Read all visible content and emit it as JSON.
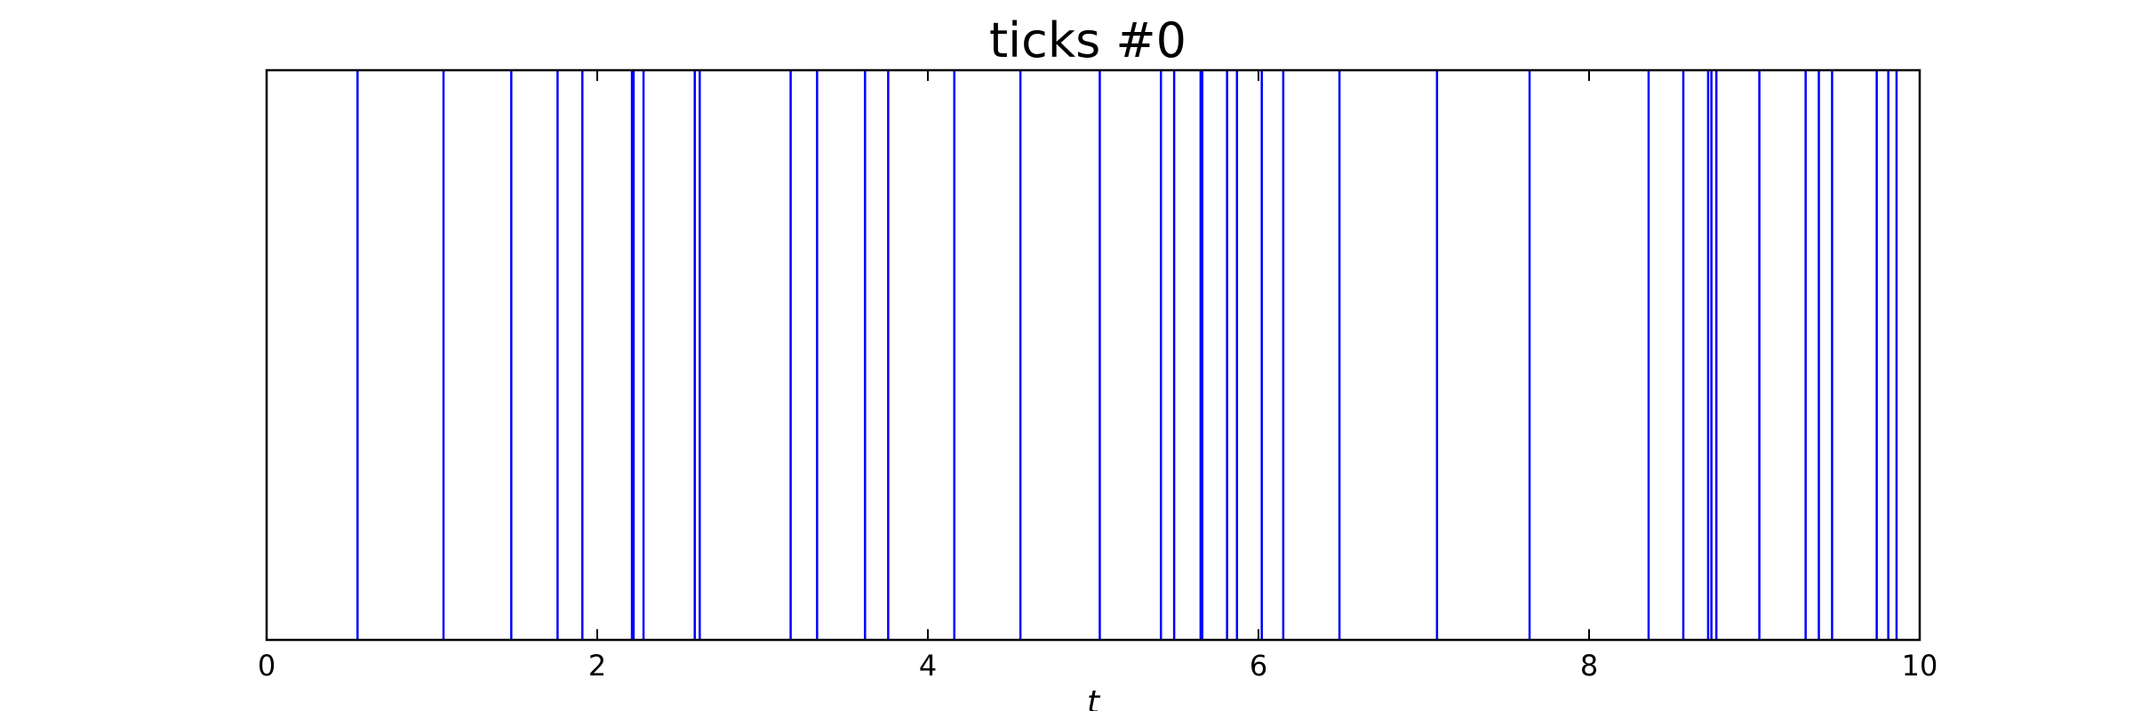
{
  "chart_data": {
    "type": "eventplot",
    "title": "ticks #0",
    "xlabel": "t",
    "ylabel": "",
    "xlim": [
      0,
      10
    ],
    "x_ticks": [
      0,
      2,
      4,
      6,
      8,
      10
    ],
    "x_tick_labels": [
      "0",
      "2",
      "4",
      "6",
      "8",
      "10"
    ],
    "grid": false,
    "line_color": "#0000ff",
    "events": [
      0.55,
      1.07,
      1.48,
      1.76,
      1.91,
      2.21,
      2.22,
      2.28,
      2.59,
      2.62,
      3.17,
      3.33,
      3.62,
      3.76,
      4.16,
      4.56,
      5.04,
      5.41,
      5.49,
      5.65,
      5.66,
      5.81,
      5.87,
      6.02,
      6.15,
      6.49,
      7.08,
      7.64,
      8.36,
      8.57,
      8.72,
      8.74,
      8.77,
      9.03,
      9.31,
      9.39,
      9.47,
      9.74,
      9.81,
      9.86
    ]
  }
}
